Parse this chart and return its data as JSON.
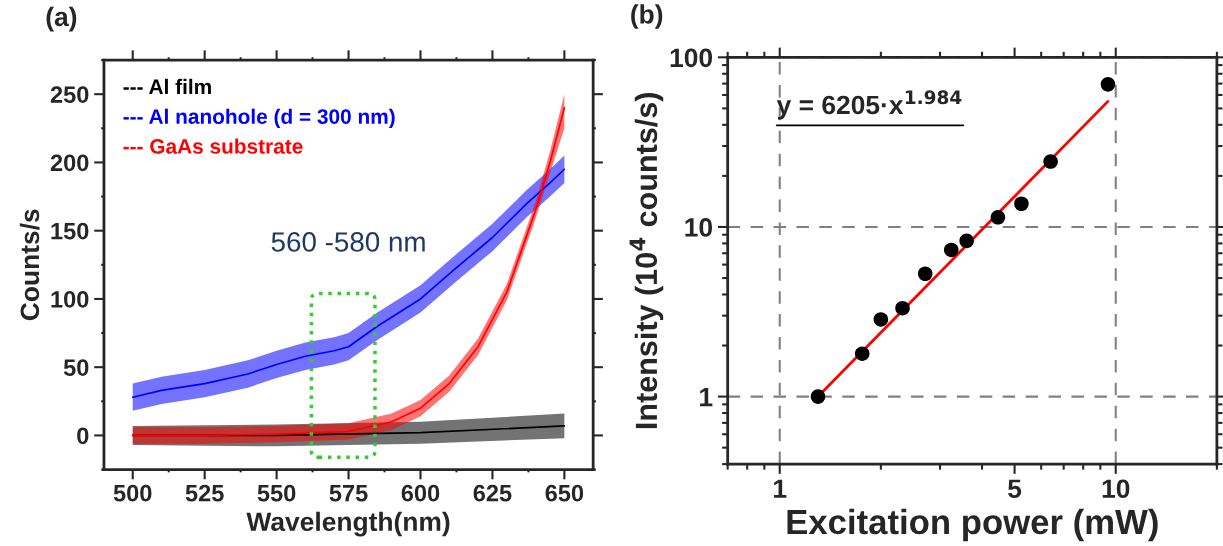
{
  "chart_data": [
    {
      "type": "line",
      "annotations": [
        "(a)",
        "560 -580 nm"
      ],
      "xlabel": "Wavelength(nm)",
      "ylabel": "Counts/s",
      "xlim": [
        490,
        660
      ],
      "xticks": [
        500,
        525,
        550,
        575,
        600,
        625,
        650
      ],
      "ylim": [
        -25,
        275
      ],
      "yticks": [
        0,
        50,
        100,
        150,
        200,
        250
      ],
      "legend": "top left",
      "series": [
        {
          "name": "--- Al film",
          "color": "#000000",
          "x": [
            500,
            550,
            600,
            650
          ],
          "values": [
            0,
            0,
            2,
            7
          ],
          "lower": [
            -7,
            -8,
            -6,
            -2
          ],
          "upper": [
            7,
            8,
            10,
            16
          ]
        },
        {
          "name": "--- Al nanohole (d = 300 nm)",
          "color": "#0000ff",
          "x": [
            500,
            510,
            525,
            540,
            550,
            560,
            570,
            575,
            585,
            600,
            612,
            625,
            637,
            645,
            650
          ],
          "values": [
            28,
            33,
            38,
            45,
            52,
            58,
            62,
            65,
            80,
            100,
            122,
            145,
            170,
            185,
            195
          ],
          "lower": [
            18,
            23,
            28,
            35,
            42,
            48,
            52,
            55,
            70,
            90,
            112,
            135,
            160,
            175,
            185
          ],
          "upper": [
            38,
            43,
            48,
            55,
            62,
            68,
            72,
            75,
            90,
            110,
            132,
            155,
            180,
            195,
            205
          ]
        },
        {
          "name": "--- GaAs substrate",
          "color": "#ff0000",
          "x": [
            500,
            525,
            550,
            575,
            590,
            600,
            610,
            620,
            630,
            640,
            645,
            650
          ],
          "values": [
            0,
            0,
            1,
            3,
            10,
            20,
            38,
            65,
            105,
            165,
            200,
            240
          ],
          "lower": [
            -6,
            -6,
            -5,
            -3,
            4,
            14,
            32,
            59,
            99,
            159,
            192,
            225
          ],
          "upper": [
            6,
            6,
            7,
            9,
            16,
            26,
            44,
            71,
            111,
            171,
            208,
            250
          ]
        }
      ]
    },
    {
      "type": "scatter",
      "annotations": [
        "(b)",
        "y = 6205·x$^{1.984}$"
      ],
      "xlabel": "Excitation power (mW)",
      "ylabel": "Intensity (10$^{4}$ counts/s)",
      "log": "xy",
      "xlim": [
        0.7,
        20
      ],
      "xticks": [
        1,
        5,
        10
      ],
      "ylim": [
        0.4,
        100
      ],
      "yticks": [
        1,
        10,
        100
      ],
      "grid": true,
      "series": [
        {
          "type": "scatter",
          "marker": "circle",
          "color": "#000000",
          "x": [
            1.3,
            1.76,
            2.0,
            2.32,
            2.71,
            3.24,
            3.6,
            4.46,
            5.24,
            6.4,
            9.48
          ],
          "values": [
            1.0,
            1.79,
            2.85,
            3.32,
            5.3,
            7.32,
            8.28,
            11.4,
            13.7,
            24.3,
            69.3
          ]
        },
        {
          "type": "line",
          "color": "#ff0000",
          "x": [
            1.3,
            9.48
          ],
          "values": [
            1.0,
            55
          ]
        }
      ]
    }
  ]
}
